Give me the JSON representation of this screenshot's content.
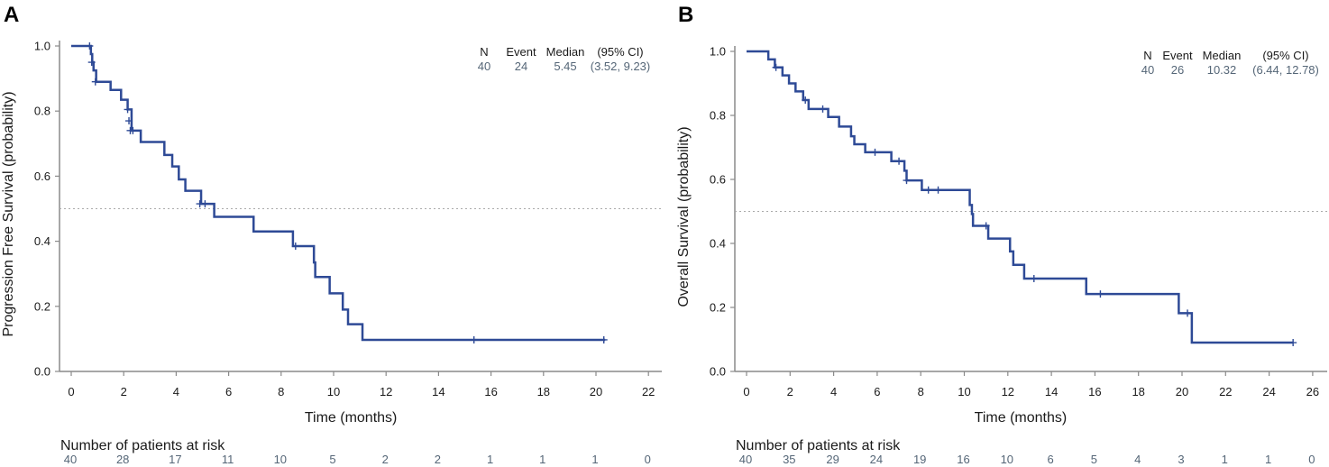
{
  "chart_data": [
    {
      "type": "line",
      "subtype": "kaplan-meier",
      "panel": "A",
      "xlabel": "Time (months)",
      "ylabel": "Progression Free Survival (probability)",
      "xlim": [
        0,
        22
      ],
      "ylim": [
        0,
        1
      ],
      "xticks": [
        "0",
        "2",
        "4",
        "6",
        "8",
        "10",
        "12",
        "14",
        "16",
        "18",
        "20",
        "22"
      ],
      "yticks": [
        "0.0",
        "0.2",
        "0.4",
        "0.6",
        "0.8",
        "1.0"
      ],
      "reference_line": 0.5,
      "stats_headers": {
        "n": "N",
        "event": "Event",
        "median": "Median",
        "ci": "(95%  CI)"
      },
      "stats_values": {
        "n": "40",
        "event": "24",
        "median": "5.45",
        "ci": "(3.52,  9.23)"
      },
      "risk_title": "Number of patients at risk",
      "risk_counts": [
        "40",
        "28",
        "17",
        "11",
        "10",
        "5",
        "2",
        "2",
        "1",
        "1",
        "1",
        "0"
      ],
      "steps": [
        [
          0,
          1.0
        ],
        [
          0.75,
          0.975
        ],
        [
          0.8,
          0.95
        ],
        [
          0.85,
          0.925
        ],
        [
          0.95,
          0.89
        ],
        [
          1.5,
          0.865
        ],
        [
          1.9,
          0.835
        ],
        [
          2.15,
          0.805
        ],
        [
          2.3,
          0.74
        ],
        [
          2.65,
          0.705
        ],
        [
          3.55,
          0.665
        ],
        [
          3.85,
          0.63
        ],
        [
          4.1,
          0.59
        ],
        [
          4.35,
          0.555
        ],
        [
          4.95,
          0.515
        ],
        [
          5.45,
          0.475
        ],
        [
          6.95,
          0.43
        ],
        [
          8.45,
          0.385
        ],
        [
          9.25,
          0.335
        ],
        [
          9.3,
          0.29
        ],
        [
          9.85,
          0.24
        ],
        [
          10.35,
          0.19
        ],
        [
          10.55,
          0.145
        ],
        [
          11.1,
          0.097
        ]
      ],
      "end_time": 20.35,
      "censors": [
        [
          0.7,
          1.0
        ],
        [
          0.78,
          0.95
        ],
        [
          0.92,
          0.89
        ],
        [
          2.15,
          0.805
        ],
        [
          2.2,
          0.77
        ],
        [
          2.25,
          0.74
        ],
        [
          2.35,
          0.74
        ],
        [
          4.9,
          0.515
        ],
        [
          5.1,
          0.515
        ],
        [
          8.55,
          0.385
        ],
        [
          15.35,
          0.097
        ],
        [
          20.3,
          0.097
        ]
      ]
    },
    {
      "type": "line",
      "subtype": "kaplan-meier",
      "panel": "B",
      "xlabel": "Time (months)",
      "ylabel": "Overall Survival (probability)",
      "xlim": [
        0,
        26
      ],
      "ylim": [
        0,
        1
      ],
      "xticks": [
        "0",
        "2",
        "4",
        "6",
        "8",
        "10",
        "12",
        "14",
        "16",
        "18",
        "20",
        "22",
        "24",
        "26"
      ],
      "yticks": [
        "0.0",
        "0.2",
        "0.4",
        "0.6",
        "0.8",
        "1.0"
      ],
      "reference_line": 0.5,
      "stats_headers": {
        "n": "N",
        "event": "Event",
        "median": "Median",
        "ci": "(95%  CI)"
      },
      "stats_values": {
        "n": "40",
        "event": "26",
        "median": "10.32",
        "ci": "(6.44,  12.78)"
      },
      "risk_title": "Number of patients at risk",
      "risk_counts": [
        "40",
        "35",
        "29",
        "24",
        "19",
        "16",
        "10",
        "6",
        "5",
        "4",
        "3",
        "1",
        "1",
        "0"
      ],
      "steps": [
        [
          0,
          1.0
        ],
        [
          1.0,
          0.975
        ],
        [
          1.3,
          0.95
        ],
        [
          1.65,
          0.925
        ],
        [
          1.95,
          0.9
        ],
        [
          2.25,
          0.875
        ],
        [
          2.6,
          0.848
        ],
        [
          2.85,
          0.82
        ],
        [
          3.75,
          0.795
        ],
        [
          4.25,
          0.765
        ],
        [
          4.8,
          0.735
        ],
        [
          4.95,
          0.71
        ],
        [
          5.45,
          0.685
        ],
        [
          6.65,
          0.657
        ],
        [
          7.25,
          0.627
        ],
        [
          7.35,
          0.597
        ],
        [
          8.05,
          0.567
        ],
        [
          10.25,
          0.52
        ],
        [
          10.35,
          0.492
        ],
        [
          10.4,
          0.455
        ],
        [
          11.1,
          0.415
        ],
        [
          12.1,
          0.375
        ],
        [
          12.25,
          0.333
        ],
        [
          12.75,
          0.29
        ],
        [
          15.6,
          0.242
        ],
        [
          19.85,
          0.182
        ],
        [
          20.45,
          0.09
        ]
      ],
      "end_time": 25.1,
      "censors": [
        [
          1.35,
          0.95
        ],
        [
          2.7,
          0.848
        ],
        [
          3.5,
          0.82
        ],
        [
          5.9,
          0.685
        ],
        [
          7.0,
          0.657
        ],
        [
          7.35,
          0.597
        ],
        [
          8.35,
          0.567
        ],
        [
          8.8,
          0.567
        ],
        [
          11.0,
          0.455
        ],
        [
          13.2,
          0.29
        ],
        [
          16.25,
          0.242
        ],
        [
          20.25,
          0.182
        ],
        [
          25.1,
          0.09
        ]
      ]
    }
  ]
}
